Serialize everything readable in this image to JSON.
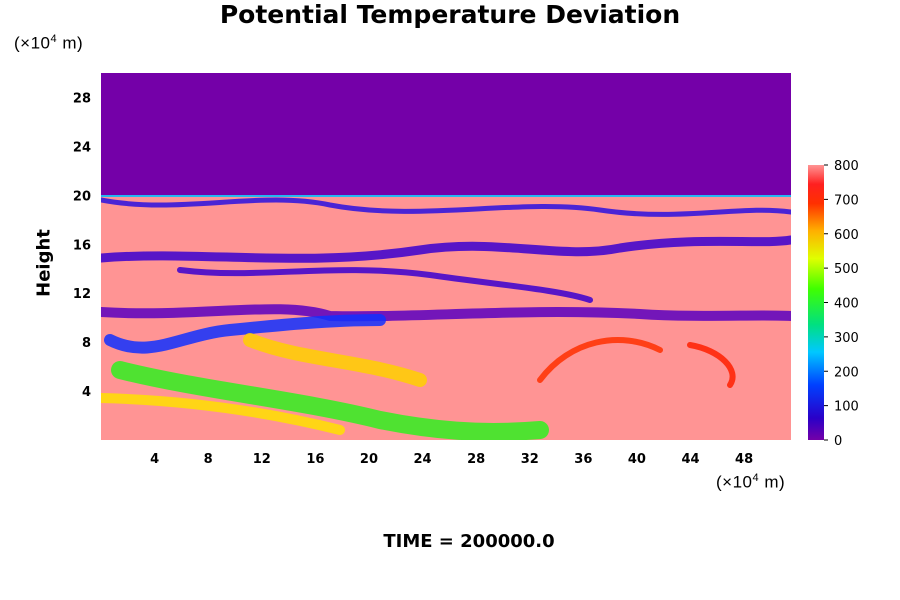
{
  "chart_data": {
    "type": "heatmap",
    "title": "Potential Temperature Deviation",
    "xlabel": "",
    "ylabel": "Height",
    "x_unit": "(×10⁴ m)",
    "y_unit": "(×10⁴ m)",
    "xlim": [
      0,
      51.5
    ],
    "ylim": [
      0,
      30
    ],
    "x_ticks": [
      4,
      8,
      12,
      16,
      20,
      24,
      28,
      32,
      36,
      40,
      44,
      48
    ],
    "y_ticks": [
      4,
      8,
      12,
      16,
      20,
      24,
      28
    ],
    "colorbar": {
      "range": [
        0,
        800
      ],
      "ticks": [
        0,
        100,
        200,
        300,
        400,
        500,
        600,
        700,
        800
      ]
    },
    "regions": [
      {
        "desc": "upper layer uniform",
        "ymin": 20,
        "ymax": 30,
        "value": 0
      },
      {
        "desc": "background",
        "ymin": 0,
        "ymax": 20,
        "value": 800
      }
    ],
    "annotation": "TIME = 200000.0"
  },
  "colors": {
    "background": "#ffffff",
    "low": "#7400a8",
    "high": "#ff9494"
  }
}
